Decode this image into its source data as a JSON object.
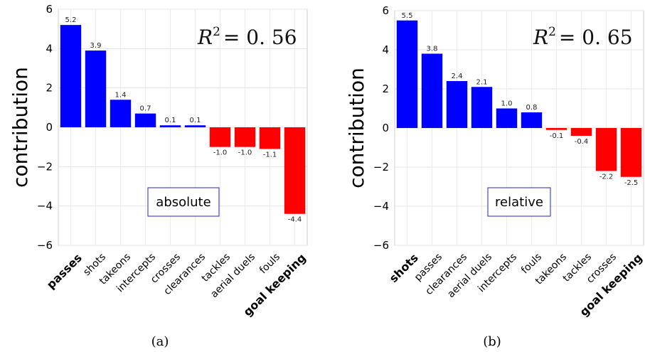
{
  "chart_data": [
    {
      "type": "bar",
      "ylabel": "contribution",
      "ylim": [
        -6,
        6
      ],
      "yticks": [
        "6",
        "4",
        "2",
        "0",
        "−2",
        "−4",
        "−6"
      ],
      "categories": [
        "passes",
        "shots",
        "takeons",
        "intercepts",
        "crosses",
        "clearances",
        "tackles",
        "aerial duels",
        "fouls",
        "goal keeping"
      ],
      "values": [
        5.2,
        3.9,
        1.4,
        0.7,
        0.1,
        0.1,
        -1.0,
        -1.0,
        -1.1,
        -4.4
      ],
      "value_labels": [
        "5.2",
        "3.9",
        "1.4",
        "0.7",
        "0.1",
        "0.1",
        "-1.0",
        "-1.0",
        "-1.1",
        "-4.4"
      ],
      "r2_label": "R",
      "r2_value": "= 0. 56",
      "mode_label": "absolute",
      "subcaption": "(a)",
      "grid": true,
      "colors": {
        "positive": "#0000ff",
        "negative": "#ff0000"
      }
    },
    {
      "type": "bar",
      "ylabel": "contribution",
      "ylim": [
        -6,
        6
      ],
      "yticks": [
        "6",
        "4",
        "2",
        "0",
        "−2",
        "−4",
        "−6"
      ],
      "categories": [
        "shots",
        "passes",
        "clearances",
        "aerial duels",
        "intercepts",
        "fouls",
        "takeons",
        "tackles",
        "crosses",
        "goal keeping"
      ],
      "values": [
        5.5,
        3.8,
        2.4,
        2.1,
        1.0,
        0.8,
        -0.1,
        -0.4,
        -2.2,
        -2.5
      ],
      "value_labels": [
        "5.5",
        "3.8",
        "2.4",
        "2.1",
        "1.0",
        "0.8",
        "-0.1",
        "-0.4",
        "-2.2",
        "-2.5"
      ],
      "r2_label": "R",
      "r2_value": "= 0. 65",
      "mode_label": "relative",
      "subcaption": "(b)",
      "grid": true,
      "colors": {
        "positive": "#0000ff",
        "negative": "#ff0000"
      }
    }
  ]
}
